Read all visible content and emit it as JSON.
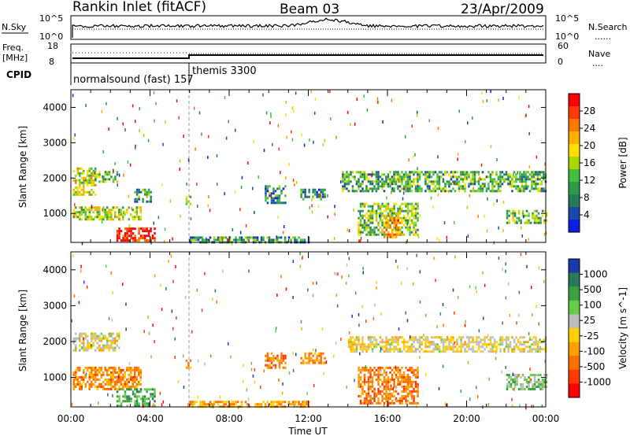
{
  "header": {
    "station": "Rankin Inlet (fitACF)",
    "beam": "Beam 03",
    "date": "23/Apr/2009"
  },
  "nsky_panel": {
    "left_label": "N.Sky",
    "left_ticks": [
      "10^5",
      "10^0"
    ],
    "right_ticks": [
      "10^5",
      "10^0"
    ],
    "right_label": "N.Search",
    "right_legend_line": "......"
  },
  "freq_panel": {
    "left_label_line1": "Freq.",
    "left_label_line2": "[MHz]",
    "left_ticks": [
      "18",
      "8"
    ],
    "right_ticks": [
      "60",
      "0"
    ],
    "right_label": "Nave",
    "right_legend_line": "...."
  },
  "cpid_panel": {
    "label": "CPID",
    "mode1": "normalsound (fast) 157",
    "mode2": "themis 3300"
  },
  "x_axis": {
    "label": "Time UT",
    "ticks": [
      "00:00",
      "04:00",
      "08:00",
      "12:00",
      "16:00",
      "20:00",
      "00:00"
    ]
  },
  "chart_data": [
    {
      "type": "heatmap",
      "name": "power",
      "ylabel": "Slant Range [km]",
      "x_range_hours": [
        0,
        24
      ],
      "ylim": [
        180,
        4500
      ],
      "yticks": [
        "1000",
        "2000",
        "3000",
        "4000"
      ],
      "colorbar_label": "Power [dB]",
      "colorbar_ticks": [
        "28",
        "24",
        "20",
        "16",
        "12",
        "8",
        "4"
      ],
      "colorbar_colors": [
        "#ff0000",
        "#ff3a00",
        "#ff7800",
        "#ffb000",
        "#ffe000",
        "#a8d800",
        "#44c040",
        "#2f9a48",
        "#267a5e",
        "#1a4aa8",
        "#0a20e0"
      ],
      "mode_change_hour": 6,
      "echo_regions": [
        {
          "t": [
            0.1,
            1.2
          ],
          "r": [
            1500,
            2300
          ],
          "level": 0.55
        },
        {
          "t": [
            1.2,
            2.4
          ],
          "r": [
            1900,
            2200
          ],
          "level": 0.45
        },
        {
          "t": [
            0.1,
            3.5
          ],
          "r": [
            800,
            1200
          ],
          "level": 0.5
        },
        {
          "t": [
            2.3,
            4.2
          ],
          "r": [
            200,
            600
          ],
          "level": 0.95
        },
        {
          "t": [
            3.2,
            4.0
          ],
          "r": [
            1300,
            1700
          ],
          "level": 0.3
        },
        {
          "t": [
            5.8,
            6.0
          ],
          "r": [
            1250,
            1500
          ],
          "level": 0.4
        },
        {
          "t": [
            6.0,
            12.0
          ],
          "r": [
            200,
            350
          ],
          "level": 0.3
        },
        {
          "t": [
            9.8,
            10.8
          ],
          "r": [
            1300,
            1800
          ],
          "level": 0.25
        },
        {
          "t": [
            11.6,
            12.8
          ],
          "r": [
            1400,
            1700
          ],
          "level": 0.25
        },
        {
          "t": [
            13.7,
            24.0
          ],
          "r": [
            1600,
            2200
          ],
          "level": 0.35
        },
        {
          "t": [
            14.5,
            17.5
          ],
          "r": [
            400,
            1300
          ],
          "level": 0.45
        },
        {
          "t": [
            15.8,
            16.6
          ],
          "r": [
            300,
            900
          ],
          "level": 0.7
        },
        {
          "t": [
            22.0,
            24.0
          ],
          "r": [
            700,
            1100
          ],
          "level": 0.45
        }
      ]
    },
    {
      "type": "heatmap",
      "name": "velocity",
      "ylabel": "Slant Range [km]",
      "x_range_hours": [
        0,
        24
      ],
      "ylim": [
        180,
        4500
      ],
      "yticks": [
        "1000",
        "2000",
        "3000",
        "4000"
      ],
      "colorbar_label": "Velocity [m s^-1]",
      "colorbar_ticks": [
        "1000",
        "500",
        "100",
        "25",
        "-25",
        "-100",
        "-500",
        "-1000"
      ],
      "colorbar_colors": [
        "#1a3aa8",
        "#2a7a5a",
        "#3aa040",
        "#66cc44",
        "#bdbdbd",
        "#ffd000",
        "#ffa000",
        "#ff7000",
        "#ff3a00",
        "#ff0000"
      ],
      "mode_change_hour": 6,
      "echo_regions": [
        {
          "t": [
            0.1,
            2.4
          ],
          "r": [
            1750,
            2250
          ],
          "vel": 0.0
        },
        {
          "t": [
            0.1,
            3.5
          ],
          "r": [
            700,
            1300
          ],
          "vel": -0.4
        },
        {
          "t": [
            2.3,
            4.2
          ],
          "r": [
            200,
            700
          ],
          "vel": 0.5
        },
        {
          "t": [
            5.8,
            6.0
          ],
          "r": [
            1250,
            1500
          ],
          "vel": -0.3
        },
        {
          "t": [
            6.0,
            12.0
          ],
          "r": [
            200,
            350
          ],
          "vel": -0.3
        },
        {
          "t": [
            9.8,
            10.8
          ],
          "r": [
            1300,
            1700
          ],
          "vel": -0.5
        },
        {
          "t": [
            11.6,
            12.8
          ],
          "r": [
            1400,
            1700
          ],
          "vel": -0.4
        },
        {
          "t": [
            14.0,
            24.0
          ],
          "r": [
            1700,
            2150
          ],
          "vel": 0.0
        },
        {
          "t": [
            14.5,
            17.5
          ],
          "r": [
            300,
            1300
          ],
          "vel": -0.45
        },
        {
          "t": [
            22.0,
            24.0
          ],
          "r": [
            700,
            1100
          ],
          "vel": 0.3
        }
      ]
    }
  ]
}
